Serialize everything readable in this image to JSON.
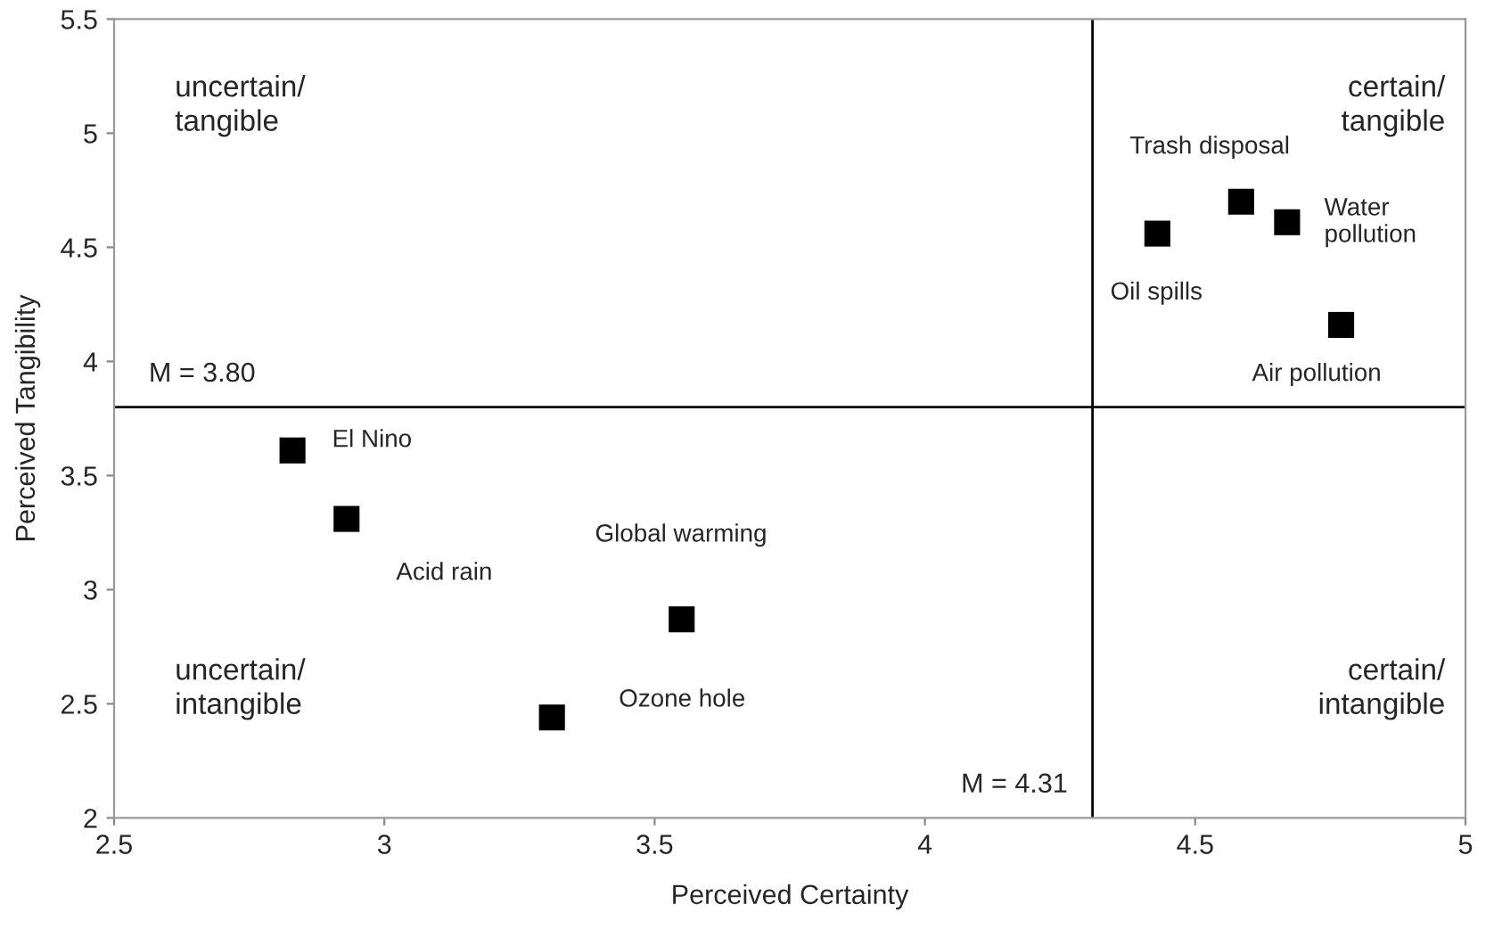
{
  "chart_data": {
    "type": "scatter",
    "xlabel": "Perceived Certainty",
    "ylabel": "Perceived Tangibility",
    "series": [
      {
        "color": "#000000",
        "x": [
          2.83,
          2.93,
          3.55,
          3.31,
          4.43,
          4.585,
          4.67,
          4.77
        ],
        "values": [
          3.61,
          3.31,
          2.87,
          2.44,
          4.56,
          4.7,
          4.61,
          4.16
        ]
      }
    ],
    "marker": "square",
    "xlim": [
      2.5,
      5
    ],
    "ylim": [
      2,
      5.5
    ],
    "xticks": [
      2.5,
      3,
      3.5,
      4,
      4.5,
      5
    ],
    "yticks": [
      2,
      2.5,
      3,
      3.5,
      4,
      4.5,
      5,
      5.5
    ],
    "grid": false,
    "legend": false,
    "ref_lines": [
      {
        "axis": "y",
        "value": 3.8,
        "label": "M = 3.80",
        "color": "#000000"
      },
      {
        "axis": "x",
        "value": 4.31,
        "label": "M = 4.31",
        "color": "#000000"
      }
    ],
    "annotations": [
      {
        "text": "El Nino",
        "x": 2.83,
        "y": 3.61
      },
      {
        "text": "Acid rain",
        "x": 2.93,
        "y": 3.31
      },
      {
        "text": "Global warming",
        "x": 3.55,
        "y": 2.87
      },
      {
        "text": "Ozone hole",
        "x": 3.31,
        "y": 2.44
      },
      {
        "text": "Oil spills",
        "x": 4.43,
        "y": 4.56
      },
      {
        "text": "Trash disposal",
        "x": 4.585,
        "y": 4.7
      },
      {
        "text": "Water\npollution",
        "x": 4.67,
        "y": 4.61
      },
      {
        "text": "Air pollution",
        "x": 4.77,
        "y": 4.16
      },
      "uncertain/\ntangible",
      "certain/\ntangible",
      "uncertain/\nintangible",
      "certain/\nintangible"
    ]
  }
}
